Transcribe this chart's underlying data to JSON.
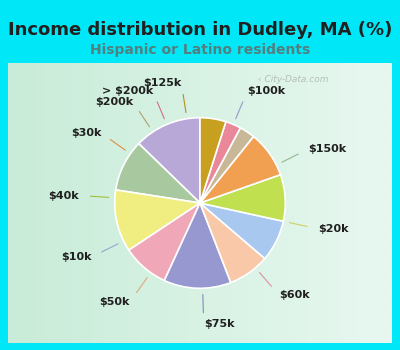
{
  "title": "Income distribution in Dudley, MA (%)",
  "subtitle": "Hispanic or Latino residents",
  "labels": [
    "$100k",
    "$150k",
    "$20k",
    "$60k",
    "$75k",
    "$50k",
    "$10k",
    "$40k",
    "$30k",
    "$200k",
    "> $200k",
    "$125k"
  ],
  "values": [
    13,
    10,
    12,
    9,
    13,
    8,
    8,
    9,
    9,
    3,
    3,
    5
  ],
  "colors": [
    "#b8a8d8",
    "#a8c8a0",
    "#f0ee80",
    "#f0a8b8",
    "#9898d0",
    "#f8c8a8",
    "#a8c8f0",
    "#c0e050",
    "#f0a050",
    "#c8b898",
    "#e88898",
    "#c8a020"
  ],
  "bg_color": "#00e8f8",
  "chart_bg_left": "#c0e8d0",
  "chart_bg_right": "#e8f8f0",
  "title_color": "#202020",
  "subtitle_color": "#508080",
  "watermark": "City-Data.com",
  "label_fontsize": 8,
  "title_fontsize": 13,
  "subtitle_fontsize": 10
}
